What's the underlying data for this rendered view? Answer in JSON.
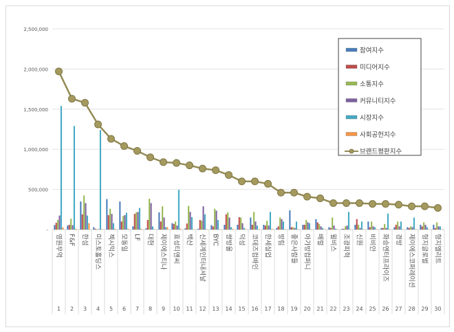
{
  "chart_data": {
    "type": "bar+line",
    "title": "",
    "ylim": [
      0,
      2500000
    ],
    "yticks": [
      "-",
      "500,000",
      "1,000,000",
      "1,500,000",
      "2,000,000",
      "2,500,000"
    ],
    "grid": true,
    "legend_position": "top-right",
    "numbers": [
      "1",
      "2",
      "3",
      "4",
      "5",
      "6",
      "7",
      "8",
      "9",
      "10",
      "11",
      "12",
      "13",
      "14",
      "15",
      "16",
      "17",
      "18",
      "19",
      "20",
      "21",
      "22",
      "23",
      "24",
      "25",
      "26",
      "27",
      "28",
      "29",
      "30"
    ],
    "categories": [
      "영원무역",
      "F&F",
      "한섬",
      "미스토홀딩스",
      "젝시믹스",
      "모동일",
      "LF",
      "대현",
      "제이에스티나",
      "효성티앤씨",
      "백산",
      "신세계인터내셔날",
      "BYC",
      "쌍방울",
      "덕성",
      "코데즈컴바인",
      "한세실업",
      "방림",
      "좋은사람들",
      "아가방컴퍼니",
      "배럴",
      "윌비스",
      "조광피혁",
      "신원",
      "비비안",
      "화승엔터프라이즈",
      "경방",
      "제이에스코퍼레이션",
      "형지글로벌",
      "형지엘리트"
    ],
    "series": [
      {
        "name": "참여지수",
        "type": "bar",
        "color": "#4a7ebb",
        "values": [
          56000,
          50000,
          350000,
          30000,
          380000,
          350000,
          40000,
          15000,
          215000,
          80000,
          15000,
          10000,
          55000,
          60000,
          60000,
          150000,
          60000,
          20000,
          240000,
          60000,
          130000,
          30000,
          10000,
          60000,
          100000,
          20000,
          30000,
          30000,
          60000,
          60000
        ]
      },
      {
        "name": "미디어지수",
        "type": "bar",
        "color": "#be4b48",
        "values": [
          85000,
          60000,
          190000,
          10000,
          180000,
          100000,
          195000,
          120000,
          100000,
          70000,
          75000,
          120000,
          40000,
          190000,
          155000,
          60000,
          50000,
          40000,
          30000,
          60000,
          90000,
          20000,
          10000,
          130000,
          30000,
          20000,
          60000,
          20000,
          40000,
          20000
        ]
      },
      {
        "name": "소통지수",
        "type": "bar",
        "color": "#98b954",
        "values": [
          121000,
          135000,
          425000,
          5000,
          260000,
          170000,
          215000,
          385000,
          290000,
          100000,
          295000,
          110000,
          260000,
          215000,
          150000,
          220000,
          110000,
          150000,
          30000,
          120000,
          70000,
          150000,
          40000,
          60000,
          100000,
          70000,
          100000,
          40000,
          90000,
          90000
        ]
      },
      {
        "name": "커뮤니티지수",
        "type": "bar",
        "color": "#7d60a0",
        "values": [
          175000,
          55000,
          330000,
          5000,
          195000,
          180000,
          220000,
          330000,
          150000,
          50000,
          220000,
          290000,
          235000,
          150000,
          80000,
          100000,
          50000,
          130000,
          20000,
          90000,
          40000,
          50000,
          50000,
          20000,
          40000,
          20000,
          40000,
          30000,
          60000,
          40000
        ]
      },
      {
        "name": "시장지수",
        "type": "bar",
        "color": "#46aac5",
        "values": [
          1540000,
          1290000,
          175000,
          1240000,
          80000,
          210000,
          270000,
          40000,
          30000,
          495000,
          155000,
          190000,
          120000,
          30000,
          20000,
          50000,
          220000,
          100000,
          100000,
          80000,
          20000,
          10000,
          220000,
          100000,
          30000,
          200000,
          100000,
          150000,
          30000,
          40000
        ]
      },
      {
        "name": "사회공헌지수",
        "type": "bar",
        "color": "#f79646",
        "values": [
          28000,
          10000,
          80000,
          5000,
          10000,
          10000,
          10000,
          5000,
          30000,
          10000,
          5000,
          5000,
          5000,
          10000,
          5000,
          5000,
          10000,
          5000,
          5000,
          5000,
          5000,
          5000,
          5000,
          5000,
          5000,
          5000,
          5000,
          5000,
          5000,
          5000
        ]
      },
      {
        "name": "브랜드평판지수",
        "type": "line",
        "color": "#948a54",
        "values": [
          1970000,
          1630000,
          1580000,
          1310000,
          1130000,
          1040000,
          980000,
          900000,
          840000,
          830000,
          800000,
          760000,
          740000,
          680000,
          600000,
          600000,
          570000,
          460000,
          460000,
          410000,
          390000,
          330000,
          330000,
          330000,
          320000,
          320000,
          310000,
          290000,
          290000,
          270000
        ]
      }
    ]
  }
}
